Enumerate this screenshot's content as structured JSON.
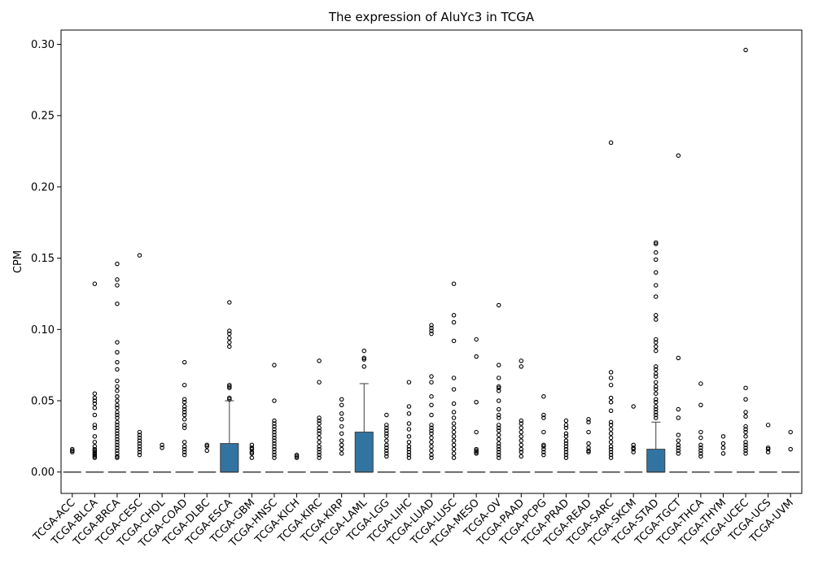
{
  "chart_data": {
    "type": "box",
    "title": "The expression of AluYc3 in TCGA",
    "xlabel": "",
    "ylabel": "CPM",
    "ylim": [
      -0.015,
      0.31
    ],
    "yticks": [
      "0.00",
      "0.05",
      "0.10",
      "0.15",
      "0.20",
      "0.25",
      "0.30"
    ],
    "grid": false,
    "box_color": "#3274a1",
    "categories": [
      "TCGA-ACC",
      "TCGA-BLCA",
      "TCGA-BRCA",
      "TCGA-CESC",
      "TCGA-CHOL",
      "TCGA-COAD",
      "TCGA-DLBC",
      "TCGA-ESCA",
      "TCGA-GBM",
      "TCGA-HNSC",
      "TCGA-KICH",
      "TCGA-KIRC",
      "TCGA-KIRP",
      "TCGA-LAML",
      "TCGA-LGG",
      "TCGA-LIHC",
      "TCGA-LUAD",
      "TCGA-LUSC",
      "TCGA-MESO",
      "TCGA-OV",
      "TCGA-PAAD",
      "TCGA-PCPG",
      "TCGA-PRAD",
      "TCGA-READ",
      "TCGA-SARC",
      "TCGA-SKCM",
      "TCGA-STAD",
      "TCGA-TGCT",
      "TCGA-THCA",
      "TCGA-THYM",
      "TCGA-UCEC",
      "TCGA-UCS",
      "TCGA-UVM"
    ],
    "boxes": [
      {
        "q1": 0,
        "median": 0,
        "q3": 0,
        "whisker_low": 0,
        "whisker_high": 0,
        "outliers": [
          0.014,
          0.015,
          0.016
        ]
      },
      {
        "q1": 0,
        "median": 0,
        "q3": 0,
        "whisker_low": 0,
        "whisker_high": 0,
        "outliers": [
          0.132,
          0.055,
          0.052,
          0.05,
          0.048,
          0.045,
          0.04,
          0.033,
          0.031,
          0.025,
          0.021,
          0.018,
          0.016,
          0.015,
          0.014,
          0.013,
          0.012,
          0.011,
          0.01
        ]
      },
      {
        "q1": 0,
        "median": 0,
        "q3": 0,
        "whisker_low": 0,
        "whisker_high": 0,
        "outliers": [
          0.146,
          0.135,
          0.131,
          0.118,
          0.091,
          0.084,
          0.077,
          0.072,
          0.064,
          0.06,
          0.057,
          0.053,
          0.05,
          0.047,
          0.045,
          0.042,
          0.04,
          0.038,
          0.035,
          0.033,
          0.031,
          0.029,
          0.027,
          0.025,
          0.023,
          0.021,
          0.019,
          0.017,
          0.015,
          0.013,
          0.011,
          0.01
        ]
      },
      {
        "q1": 0,
        "median": 0,
        "q3": 0,
        "whisker_low": 0,
        "whisker_high": 0,
        "outliers": [
          0.152,
          0.028,
          0.026,
          0.024,
          0.022,
          0.02,
          0.018,
          0.016,
          0.014,
          0.012
        ]
      },
      {
        "q1": 0,
        "median": 0,
        "q3": 0,
        "whisker_low": 0,
        "whisker_high": 0,
        "outliers": [
          0.019,
          0.017
        ]
      },
      {
        "q1": 0,
        "median": 0,
        "q3": 0,
        "whisker_low": 0,
        "whisker_high": 0,
        "outliers": [
          0.077,
          0.061,
          0.051,
          0.049,
          0.046,
          0.044,
          0.042,
          0.04,
          0.037,
          0.033,
          0.031,
          0.021,
          0.018,
          0.016,
          0.014,
          0.012
        ]
      },
      {
        "q1": 0,
        "median": 0,
        "q3": 0,
        "whisker_low": 0,
        "whisker_high": 0,
        "outliers": [
          0.019,
          0.018,
          0.015
        ]
      },
      {
        "q1": 0,
        "median": 0,
        "q3": 0.02,
        "whisker_low": 0,
        "whisker_high": 0.05,
        "outliers": [
          0.119,
          0.099,
          0.097,
          0.094,
          0.091,
          0.088,
          0.061,
          0.06,
          0.059,
          0.052,
          0.051
        ]
      },
      {
        "q1": 0,
        "median": 0,
        "q3": 0,
        "whisker_low": 0,
        "whisker_high": 0,
        "outliers": [
          0.019,
          0.017,
          0.016,
          0.014,
          0.013,
          0.01
        ]
      },
      {
        "q1": 0,
        "median": 0,
        "q3": 0,
        "whisker_low": 0,
        "whisker_high": 0,
        "outliers": [
          0.075,
          0.05,
          0.036,
          0.034,
          0.032,
          0.03,
          0.028,
          0.026,
          0.024,
          0.022,
          0.02,
          0.018,
          0.016,
          0.014,
          0.012,
          0.01
        ]
      },
      {
        "q1": 0,
        "median": 0,
        "q3": 0,
        "whisker_low": 0,
        "whisker_high": 0,
        "outliers": [
          0.012,
          0.011,
          0.01
        ]
      },
      {
        "q1": 0,
        "median": 0,
        "q3": 0,
        "whisker_low": 0,
        "whisker_high": 0,
        "outliers": [
          0.078,
          0.063,
          0.038,
          0.036,
          0.034,
          0.031,
          0.029,
          0.027,
          0.024,
          0.021,
          0.018,
          0.016,
          0.014,
          0.012,
          0.01
        ]
      },
      {
        "q1": 0,
        "median": 0,
        "q3": 0,
        "whisker_low": 0,
        "whisker_high": 0,
        "outliers": [
          0.051,
          0.047,
          0.041,
          0.037,
          0.032,
          0.027,
          0.022,
          0.019,
          0.016,
          0.013
        ]
      },
      {
        "q1": 0,
        "median": 0,
        "q3": 0.028,
        "whisker_low": 0,
        "whisker_high": 0.062,
        "outliers": [
          0.085,
          0.08,
          0.079,
          0.074
        ]
      },
      {
        "q1": 0,
        "median": 0,
        "q3": 0,
        "whisker_low": 0,
        "whisker_high": 0,
        "outliers": [
          0.04,
          0.033,
          0.031,
          0.029,
          0.027,
          0.025,
          0.022,
          0.019,
          0.017,
          0.015,
          0.013,
          0.011
        ]
      },
      {
        "q1": 0,
        "median": 0,
        "q3": 0,
        "whisker_low": 0,
        "whisker_high": 0,
        "outliers": [
          0.063,
          0.046,
          0.041,
          0.034,
          0.03,
          0.025,
          0.021,
          0.018,
          0.016,
          0.014,
          0.012,
          0.01
        ]
      },
      {
        "q1": 0,
        "median": 0,
        "q3": 0,
        "whisker_low": 0,
        "whisker_high": 0,
        "outliers": [
          0.103,
          0.101,
          0.099,
          0.097,
          0.067,
          0.063,
          0.053,
          0.047,
          0.04,
          0.033,
          0.031,
          0.029,
          0.027,
          0.024,
          0.021,
          0.018,
          0.015,
          0.012,
          0.01
        ]
      },
      {
        "q1": 0,
        "median": 0,
        "q3": 0,
        "whisker_low": 0,
        "whisker_high": 0,
        "outliers": [
          0.132,
          0.11,
          0.105,
          0.092,
          0.066,
          0.058,
          0.048,
          0.042,
          0.038,
          0.034,
          0.031,
          0.028,
          0.025,
          0.022,
          0.019,
          0.016,
          0.013,
          0.01
        ]
      },
      {
        "q1": 0,
        "median": 0,
        "q3": 0,
        "whisker_low": 0,
        "whisker_high": 0,
        "outliers": [
          0.093,
          0.081,
          0.049,
          0.028,
          0.016,
          0.015,
          0.014,
          0.013
        ]
      },
      {
        "q1": 0,
        "median": 0,
        "q3": 0,
        "whisker_low": 0,
        "whisker_high": 0,
        "outliers": [
          0.117,
          0.075,
          0.066,
          0.06,
          0.059,
          0.057,
          0.05,
          0.044,
          0.04,
          0.038,
          0.033,
          0.031,
          0.029,
          0.026,
          0.023,
          0.02,
          0.018,
          0.016,
          0.014,
          0.012,
          0.01
        ]
      },
      {
        "q1": 0,
        "median": 0,
        "q3": 0,
        "whisker_low": 0,
        "whisker_high": 0,
        "outliers": [
          0.078,
          0.074,
          0.036,
          0.034,
          0.031,
          0.028,
          0.025,
          0.022,
          0.019,
          0.016,
          0.014,
          0.011
        ]
      },
      {
        "q1": 0,
        "median": 0,
        "q3": 0,
        "whisker_low": 0,
        "whisker_high": 0,
        "outliers": [
          0.053,
          0.04,
          0.038,
          0.028,
          0.019,
          0.018,
          0.016,
          0.014,
          0.012
        ]
      },
      {
        "q1": 0,
        "median": 0,
        "q3": 0,
        "whisker_low": 0,
        "whisker_high": 0,
        "outliers": [
          0.036,
          0.033,
          0.031,
          0.027,
          0.025,
          0.022,
          0.02,
          0.018,
          0.016,
          0.014,
          0.012,
          0.01
        ]
      },
      {
        "q1": 0,
        "median": 0,
        "q3": 0,
        "whisker_low": 0,
        "whisker_high": 0,
        "outliers": [
          0.037,
          0.035,
          0.028,
          0.02,
          0.017,
          0.015,
          0.014
        ]
      },
      {
        "q1": 0,
        "median": 0,
        "q3": 0,
        "whisker_low": 0,
        "whisker_high": 0,
        "outliers": [
          0.231,
          0.07,
          0.066,
          0.061,
          0.052,
          0.049,
          0.043,
          0.035,
          0.033,
          0.03,
          0.027,
          0.024,
          0.021,
          0.018,
          0.016,
          0.014,
          0.012,
          0.01
        ]
      },
      {
        "q1": 0,
        "median": 0,
        "q3": 0,
        "whisker_low": 0,
        "whisker_high": 0,
        "outliers": [
          0.046,
          0.019,
          0.017,
          0.016,
          0.014
        ]
      },
      {
        "q1": 0,
        "median": 0,
        "q3": 0.016,
        "whisker_low": 0,
        "whisker_high": 0.035,
        "outliers": [
          0.161,
          0.16,
          0.154,
          0.149,
          0.14,
          0.131,
          0.123,
          0.11,
          0.107,
          0.093,
          0.091,
          0.088,
          0.085,
          0.074,
          0.072,
          0.069,
          0.067,
          0.063,
          0.06,
          0.058,
          0.055,
          0.051,
          0.049,
          0.046,
          0.044,
          0.042,
          0.04,
          0.038
        ]
      },
      {
        "q1": 0,
        "median": 0,
        "q3": 0,
        "whisker_low": 0,
        "whisker_high": 0,
        "outliers": [
          0.222,
          0.08,
          0.044,
          0.038,
          0.026,
          0.022,
          0.019,
          0.017,
          0.015,
          0.013
        ]
      },
      {
        "q1": 0,
        "median": 0,
        "q3": 0,
        "whisker_low": 0,
        "whisker_high": 0,
        "outliers": [
          0.062,
          0.047,
          0.028,
          0.024,
          0.019,
          0.017,
          0.015,
          0.013,
          0.011
        ]
      },
      {
        "q1": 0,
        "median": 0,
        "q3": 0,
        "whisker_low": 0,
        "whisker_high": 0,
        "outliers": [
          0.025,
          0.02,
          0.017,
          0.013
        ]
      },
      {
        "q1": 0,
        "median": 0,
        "q3": 0,
        "whisker_low": 0,
        "whisker_high": 0,
        "outliers": [
          0.296,
          0.059,
          0.051,
          0.042,
          0.039,
          0.032,
          0.03,
          0.028,
          0.025,
          0.021,
          0.019,
          0.017,
          0.015,
          0.013
        ]
      },
      {
        "q1": 0,
        "median": 0,
        "q3": 0,
        "whisker_low": 0,
        "whisker_high": 0,
        "outliers": [
          0.033,
          0.017,
          0.016,
          0.014
        ]
      },
      {
        "q1": 0,
        "median": 0,
        "q3": 0,
        "whisker_low": 0,
        "whisker_high": 0,
        "outliers": [
          0.028,
          0.016
        ]
      }
    ]
  }
}
